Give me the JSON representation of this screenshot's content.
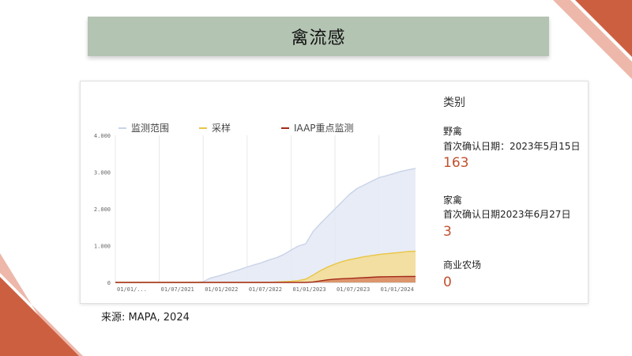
{
  "slide": {
    "title": "禽流感",
    "source": "来源: MAPA, 2024"
  },
  "colors": {
    "accent": "#c1502e",
    "title_bar": "#b3c4b2"
  },
  "side_panel": {
    "title": "类别",
    "categories": [
      {
        "name": "野禽",
        "date_text": "首次确认日期：2023年5月15日",
        "count": "163"
      },
      {
        "name": "家禽",
        "date_text": "首次确认日期2023年6月27日",
        "count": "3"
      },
      {
        "name": "商业农场",
        "count": "0"
      }
    ]
  },
  "chart_data": {
    "type": "area",
    "x_tick_labels": [
      "01/01/...",
      "01/07/2021",
      "01/01/2022",
      "01/07/2022",
      "01/01/2023",
      "01/07/2023",
      "01/01/2024"
    ],
    "y_tick_labels": [
      "0",
      "1.000",
      "2.000",
      "3.000",
      "4.000"
    ],
    "ylim": [
      0,
      4000
    ],
    "x": [
      "2021-01",
      "2021-02",
      "2021-03",
      "2021-04",
      "2021-05",
      "2021-06",
      "2021-07",
      "2021-08",
      "2021-09",
      "2021-10",
      "2021-11",
      "2021-12",
      "2022-01",
      "2022-02",
      "2022-03",
      "2022-04",
      "2022-05",
      "2022-06",
      "2022-07",
      "2022-08",
      "2022-09",
      "2022-10",
      "2022-11",
      "2022-12",
      "2023-01",
      "2023-02",
      "2023-03",
      "2023-04",
      "2023-05",
      "2023-06",
      "2023-07",
      "2023-08",
      "2023-09",
      "2023-10",
      "2023-11",
      "2023-12",
      "2024-01",
      "2024-02",
      "2024-03",
      "2024-04",
      "2024-05",
      "2024-06"
    ],
    "series": [
      {
        "name": "监测范围",
        "color": "#c9d3e8",
        "fill": "#e4e9f5",
        "values": [
          0,
          0,
          0,
          0,
          0,
          0,
          0,
          0,
          0,
          0,
          0,
          0,
          20,
          120,
          170,
          230,
          290,
          350,
          420,
          480,
          540,
          610,
          670,
          760,
          880,
          990,
          1050,
          1380,
          1600,
          1800,
          2000,
          2200,
          2400,
          2550,
          2650,
          2750,
          2850,
          2900,
          2960,
          3020,
          3060,
          3100
        ]
      },
      {
        "name": "采样",
        "color": "#e9c545",
        "fill": "#f3dd92",
        "values": [
          0,
          0,
          0,
          0,
          0,
          0,
          0,
          0,
          0,
          0,
          0,
          0,
          0,
          0,
          0,
          0,
          0,
          0,
          0,
          0,
          0,
          0,
          10,
          20,
          30,
          50,
          90,
          200,
          320,
          420,
          500,
          570,
          620,
          660,
          700,
          730,
          760,
          780,
          800,
          820,
          840,
          850
        ]
      },
      {
        "name": "IAAP重点监测",
        "color": "#a42a1a",
        "fill": "#d98a63",
        "values": [
          0,
          0,
          0,
          0,
          0,
          0,
          0,
          0,
          0,
          0,
          0,
          0,
          0,
          0,
          0,
          0,
          0,
          0,
          0,
          0,
          0,
          0,
          0,
          0,
          0,
          0,
          0,
          10,
          40,
          70,
          90,
          100,
          110,
          120,
          130,
          140,
          150,
          155,
          158,
          160,
          162,
          163
        ]
      }
    ],
    "legend_position": "top-left",
    "grid": "vertical"
  }
}
